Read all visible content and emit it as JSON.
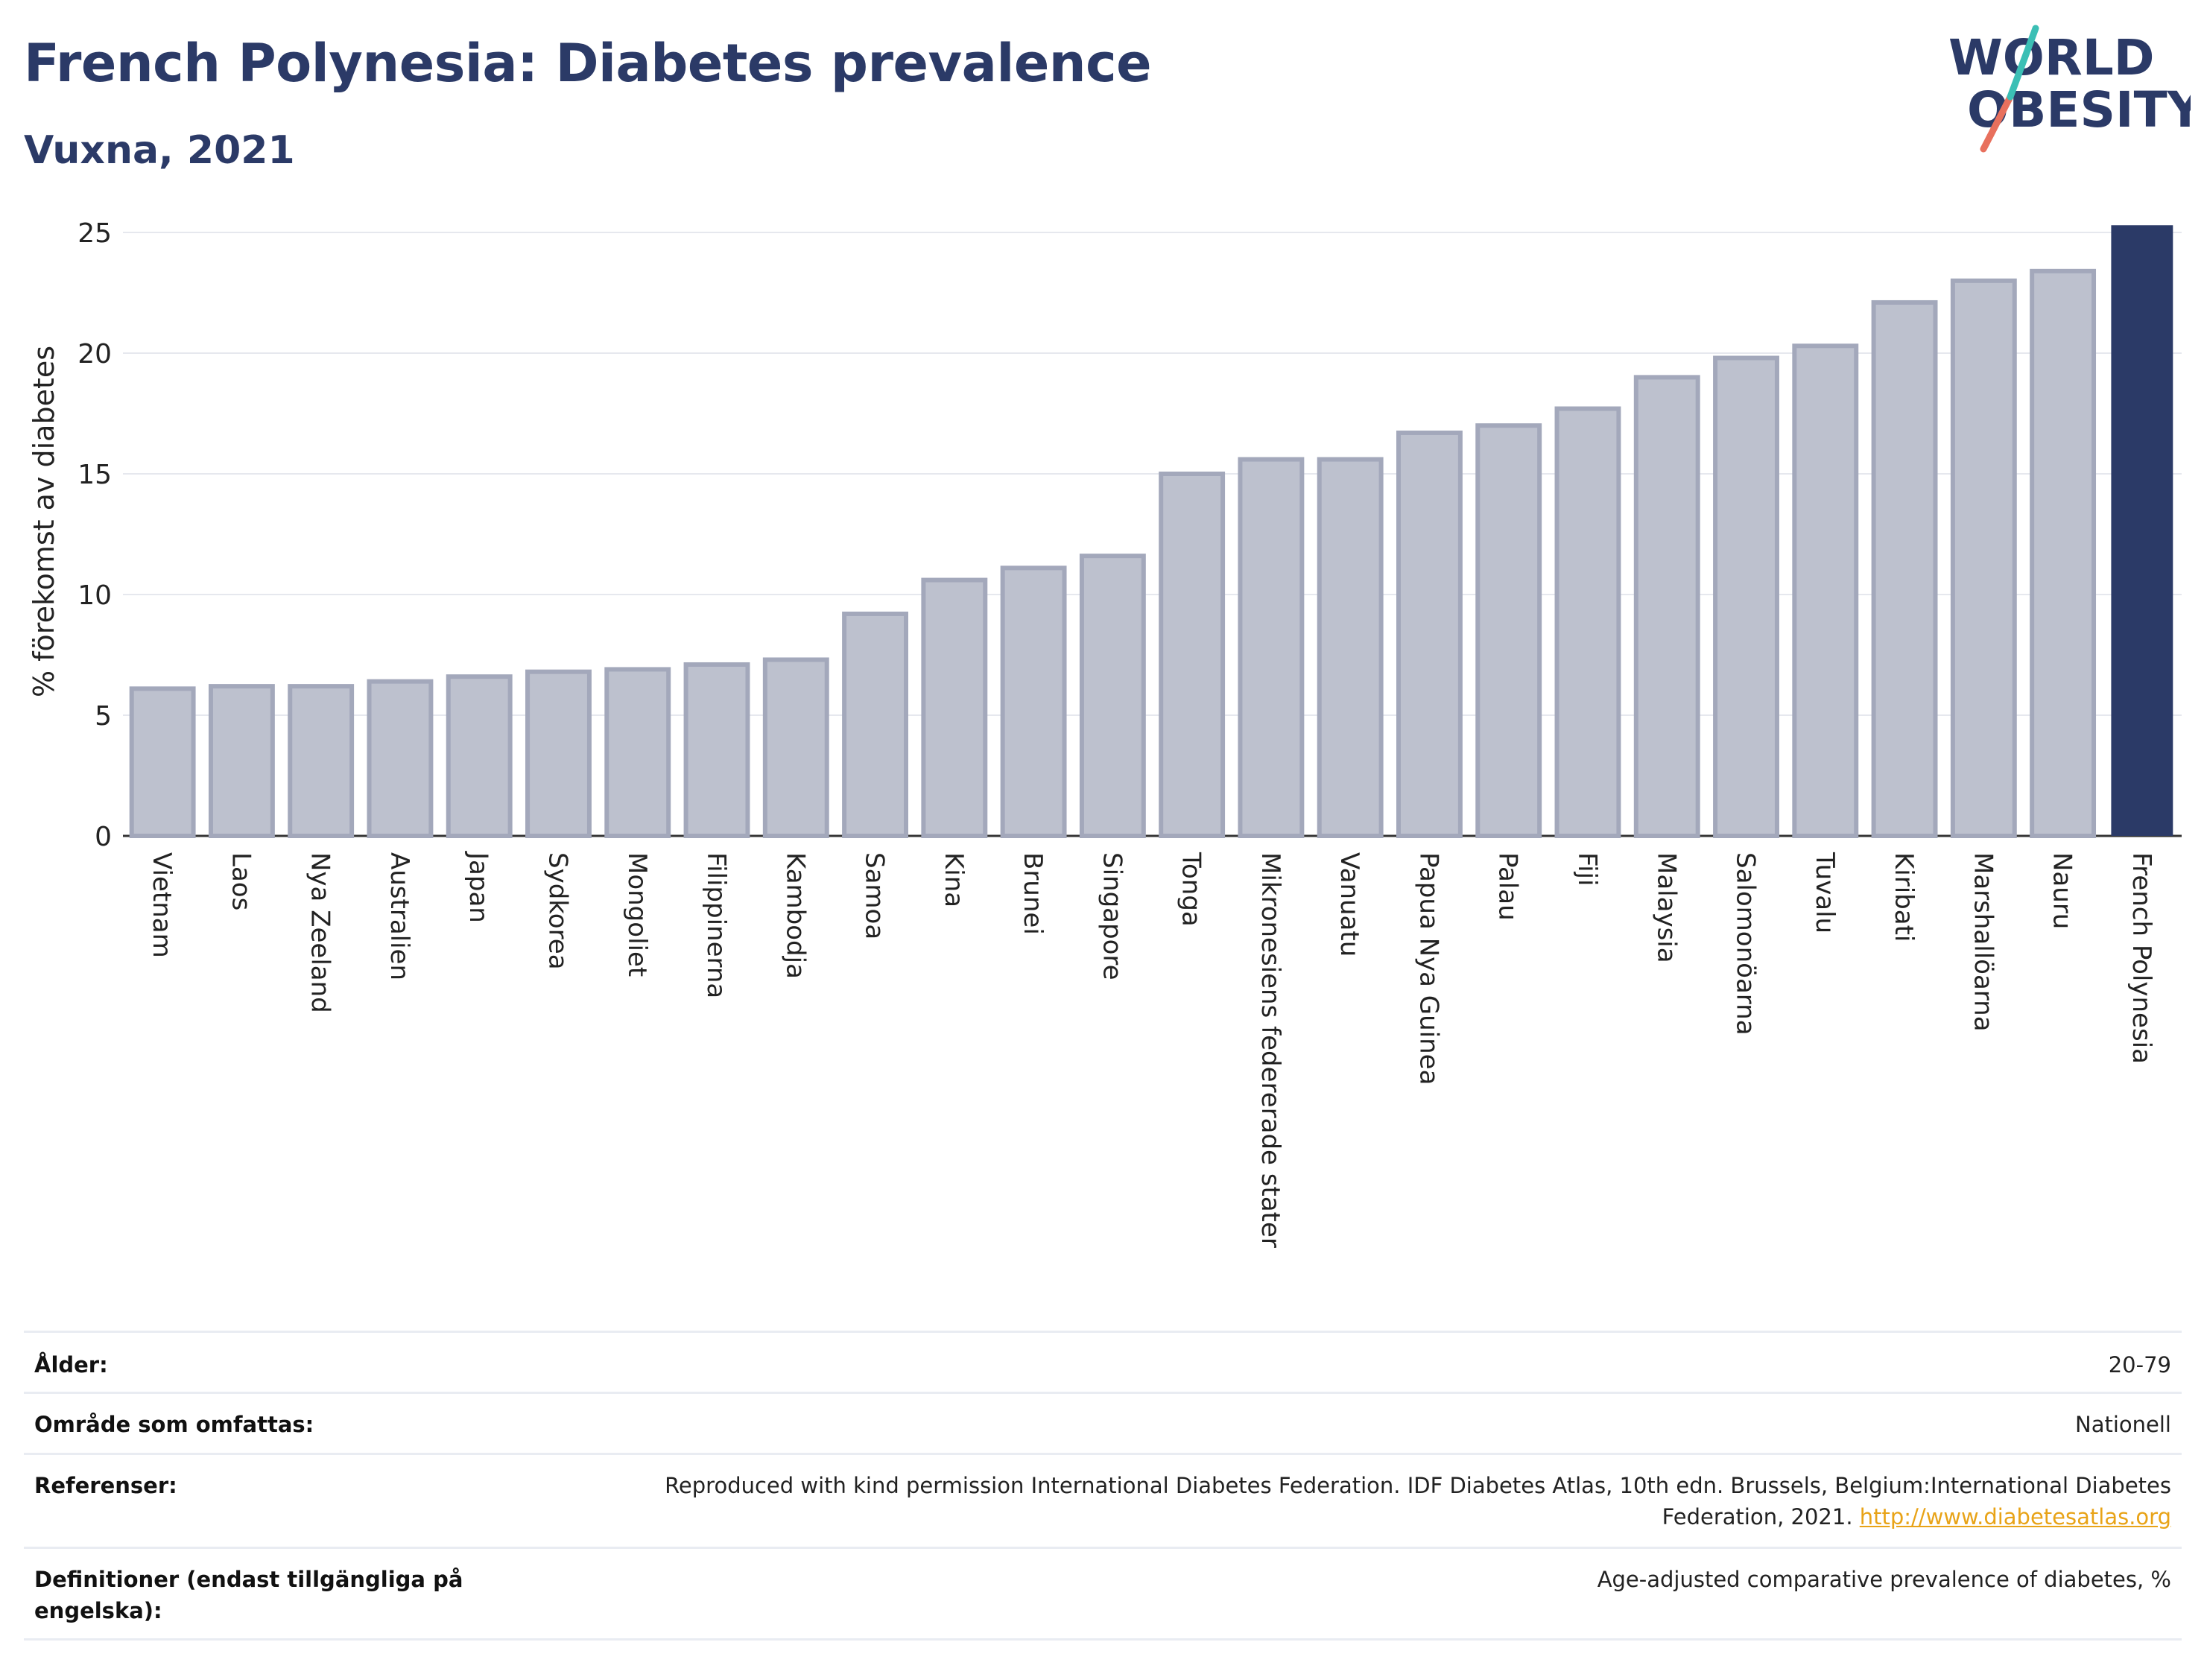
{
  "title": "French Polynesia: Diabetes prevalence",
  "subtitle": "Vuxna, 2021",
  "logo": {
    "line1": "WORLD",
    "line2": "OBESITY"
  },
  "colors": {
    "bar": "#bdc1ce",
    "bar_stroke": "#a3a8bb",
    "highlight": "#2b3a67",
    "grid": "#e6e8ee",
    "title": "#2b3a67"
  },
  "chart_data": {
    "type": "bar",
    "ylabel": "% förekomst av diabetes",
    "ylim": [
      0,
      25
    ],
    "yticks": [
      0,
      5,
      10,
      15,
      20,
      25
    ],
    "grid": true,
    "highlight": "French Polynesia",
    "categories": [
      "Vietnam",
      "Laos",
      "Nya Zeeland",
      "Australien",
      "Japan",
      "Sydkorea",
      "Mongoliet",
      "Filippinerna",
      "Kambodja",
      "Samoa",
      "Kina",
      "Brunei",
      "Singapore",
      "Tonga",
      "Mikronesiens federerade stater",
      "Vanuatu",
      "Papua Nya Guinea",
      "Palau",
      "Fiji",
      "Malaysia",
      "Salomonöarna",
      "Tuvalu",
      "Kiribati",
      "Marshallöarna",
      "Nauru",
      "French Polynesia"
    ],
    "values": [
      6.1,
      6.2,
      6.2,
      6.4,
      6.6,
      6.8,
      6.9,
      7.1,
      7.3,
      9.2,
      10.6,
      11.1,
      11.6,
      15.0,
      15.6,
      15.6,
      16.7,
      17.0,
      17.7,
      19.0,
      19.8,
      20.3,
      22.1,
      23.0,
      23.4,
      25.3
    ]
  },
  "meta": [
    {
      "label": "Ålder:",
      "value": "20-79"
    },
    {
      "label": "Område som omfattas:",
      "value": "Nationell"
    },
    {
      "label": "Referenser:",
      "value": "Reproduced with kind permission International Diabetes Federation.  IDF Diabetes Atlas, 10th edn. Brussels, Belgium:International Diabetes Federation, 2021.",
      "link": "http://www.diabetesatlas.org"
    },
    {
      "label": "Definitioner (endast tillgängliga på engelska):",
      "value": "Age-adjusted comparative prevalence of diabetes, %"
    }
  ]
}
